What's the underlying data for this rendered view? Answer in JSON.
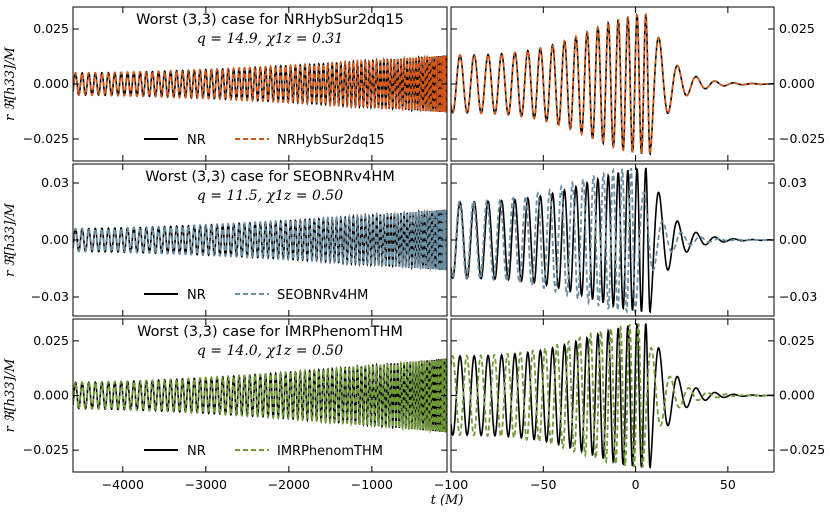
{
  "chart_data": [
    {
      "type": "line",
      "panel": "left",
      "title": "Worst (3,3) case for NRHybSur2dq15",
      "params": "q = 14.9, χ1z = 0.31",
      "ylabel": "r ℜ[h33]/M",
      "xlim": [
        -4600,
        -95
      ],
      "ylim": [
        -0.035,
        0.035
      ],
      "yticks": [
        -0.025,
        0.0,
        0.025
      ],
      "ytick_labels": [
        "−0.025",
        "0.000",
        "0.025"
      ],
      "xticks": [
        -4000,
        -3000,
        -2000,
        -1000
      ],
      "series": [
        {
          "name": "NR",
          "color": "#000000",
          "dash": "solid"
        },
        {
          "name": "NRHybSur2dq15",
          "color": "#d4581a",
          "dash": "dashed"
        }
      ],
      "amp_start": 0.005,
      "amp_end": 0.013
    },
    {
      "type": "line",
      "panel": "right",
      "xlim": [
        -100,
        75
      ],
      "ylim": [
        -0.035,
        0.035
      ],
      "yticks": [
        -0.025,
        0.0,
        0.025
      ],
      "ytick_labels": [
        "−0.025",
        "0.000",
        "0.025"
      ],
      "xticks": [
        -100,
        -50,
        0,
        50
      ],
      "series": [
        {
          "name": "NR",
          "color": "#000000",
          "dash": "solid"
        },
        {
          "name": "NRHybSur2dq15",
          "color": "#d4581a",
          "dash": "dashed",
          "shift": 0.0
        }
      ],
      "amp_start": 0.013,
      "amp_peak": 0.032
    },
    {
      "type": "line",
      "panel": "left",
      "title": "Worst (3,3) case for SEOBNRv4HM",
      "params": "q = 11.5, χ1z = 0.50",
      "ylabel": "r ℜ[h33]/M",
      "xlim": [
        -4600,
        -95
      ],
      "ylim": [
        -0.04,
        0.04
      ],
      "yticks": [
        -0.03,
        0.0,
        0.03
      ],
      "ytick_labels": [
        "−0.03",
        "0.00",
        "0.03"
      ],
      "xticks": [
        -4000,
        -3000,
        -2000,
        -1000
      ],
      "series": [
        {
          "name": "NR",
          "color": "#000000",
          "dash": "solid"
        },
        {
          "name": "SEOBNRv4HM",
          "color": "#6b8fa3",
          "dash": "dashed"
        }
      ],
      "amp_start": 0.006,
      "amp_end": 0.016
    },
    {
      "type": "line",
      "panel": "right",
      "xlim": [
        -100,
        75
      ],
      "ylim": [
        -0.04,
        0.04
      ],
      "yticks": [
        -0.03,
        0.0,
        0.03
      ],
      "ytick_labels": [
        "−0.03",
        "0.00",
        "0.03"
      ],
      "xticks": [
        -100,
        -50,
        0,
        50
      ],
      "series": [
        {
          "name": "NR",
          "color": "#000000",
          "dash": "solid"
        },
        {
          "name": "SEOBNRv4HM",
          "color": "#6b8fa3",
          "dash": "dashed",
          "shift": -8.0
        }
      ],
      "amp_start": 0.02,
      "amp_peak": 0.038
    },
    {
      "type": "line",
      "panel": "left",
      "title": "Worst (3,3) case for IMRPhenomTHM",
      "params": "q = 14.0, χ1z = 0.50",
      "ylabel": "r ℜ[h33]/M",
      "xlim": [
        -4600,
        -95
      ],
      "ylim": [
        -0.035,
        0.035
      ],
      "yticks": [
        -0.025,
        0.0,
        0.025
      ],
      "ytick_labels": [
        "−0.025",
        "0.000",
        "0.025"
      ],
      "xticks": [
        -4000,
        -3000,
        -2000,
        -1000
      ],
      "series": [
        {
          "name": "NR",
          "color": "#000000",
          "dash": "solid"
        },
        {
          "name": "IMRPhenomTHM",
          "color": "#6f9a35",
          "dash": "dashed"
        }
      ],
      "amp_start": 0.006,
      "amp_end": 0.017
    },
    {
      "type": "line",
      "panel": "right",
      "xlim": [
        -100,
        75
      ],
      "ylim": [
        -0.035,
        0.035
      ],
      "yticks": [
        -0.025,
        0.0,
        0.025
      ],
      "ytick_labels": [
        "−0.025",
        "0.000",
        "0.025"
      ],
      "xticks": [
        -100,
        -50,
        0,
        50
      ],
      "series": [
        {
          "name": "NR",
          "color": "#000000",
          "dash": "solid"
        },
        {
          "name": "IMRPhenomTHM",
          "color": "#6f9a35",
          "dash": "dashed",
          "shift": -4.0
        }
      ],
      "amp_start": 0.018,
      "amp_peak": 0.033
    }
  ],
  "xlabel": "t (M)",
  "left_xtick_labels": [
    "−4000",
    "−3000",
    "−2000",
    "−1000"
  ],
  "right_xtick_labels": [
    "−100",
    "−50",
    "0",
    "50"
  ]
}
